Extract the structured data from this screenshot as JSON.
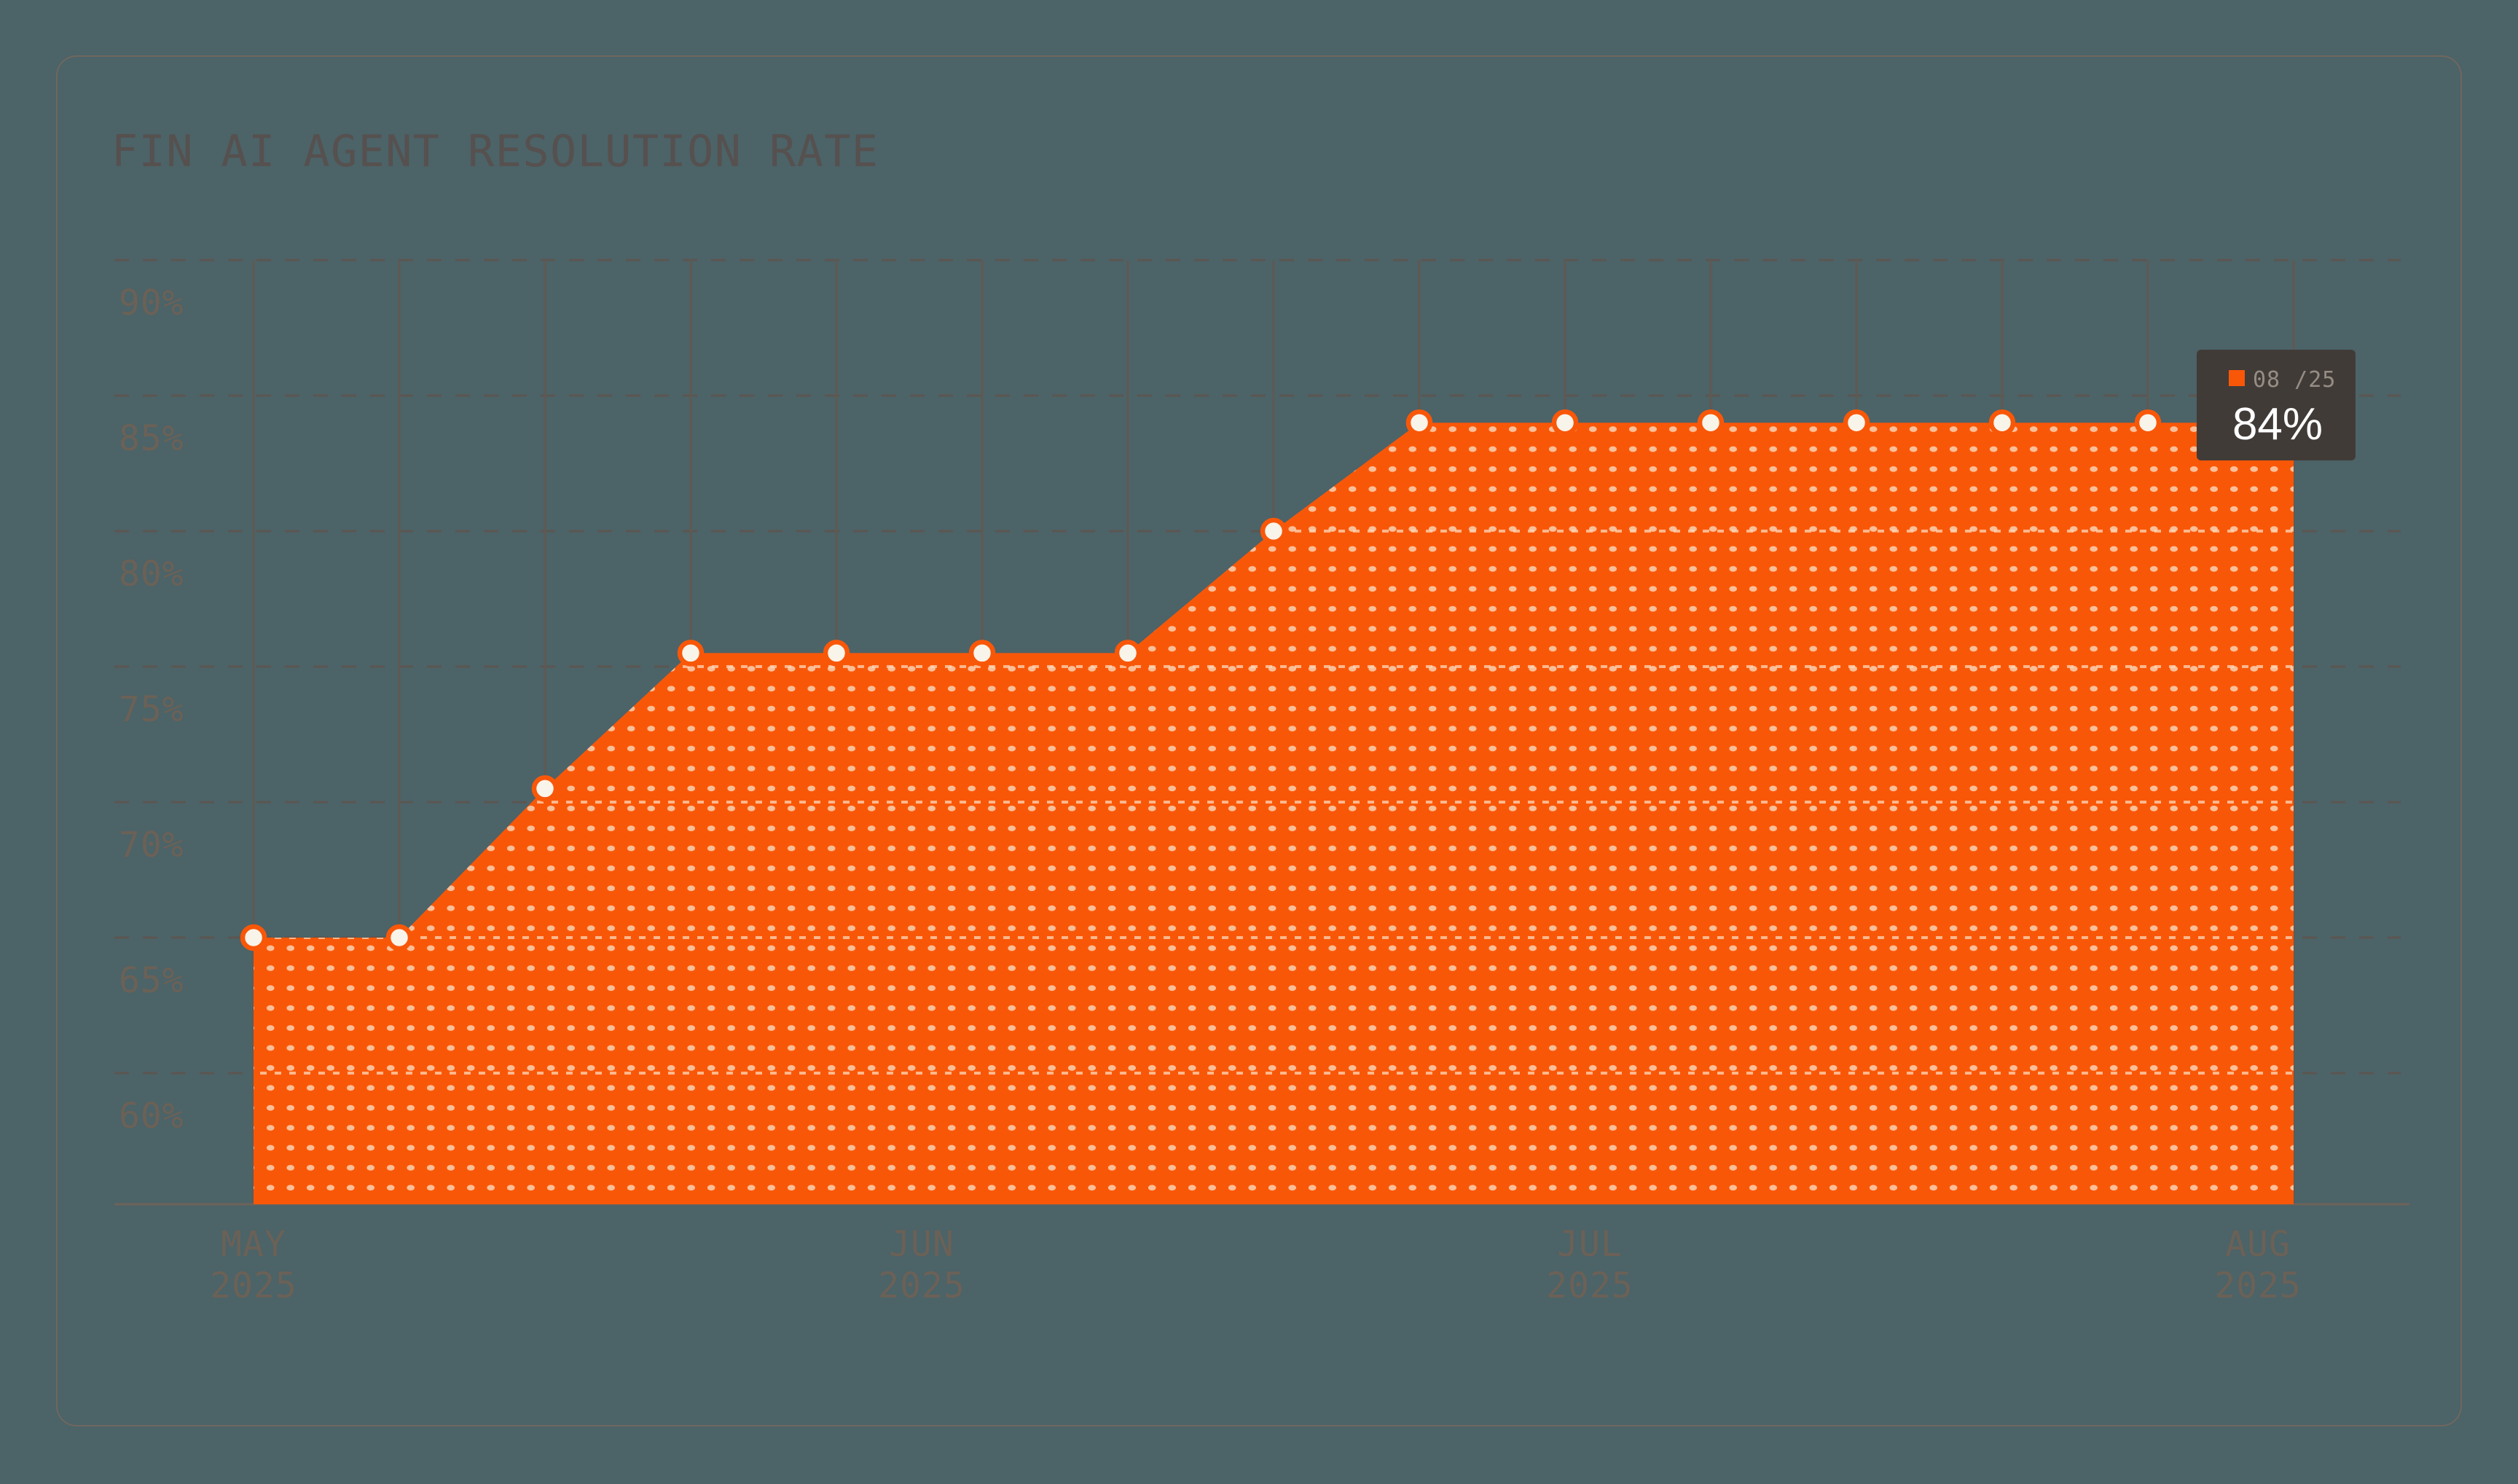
{
  "title": {
    "text": "FIN AI AGENT RESOLUTION RATE"
  },
  "chart_data": {
    "type": "area",
    "title": "FIN AI AGENT RESOLUTION RATE",
    "series": [
      {
        "name": "Resolution rate",
        "unit": "%",
        "values": [
          65,
          65,
          70.5,
          75.5,
          75.5,
          75.5,
          75.5,
          80,
          84,
          84,
          84,
          84,
          84,
          84
        ]
      }
    ],
    "x_axis": {
      "tick_labels": [
        {
          "month": "MAY",
          "year": "2025"
        },
        {
          "month": "JUN",
          "year": "2025"
        },
        {
          "month": "JUL",
          "year": "2025"
        },
        {
          "month": "AUG",
          "year": "2025"
        }
      ]
    },
    "y_axis": {
      "tick_labels": [
        "90%",
        "85%",
        "80%",
        "75%",
        "70%",
        "65%",
        "60%"
      ],
      "tick_values": [
        90,
        85,
        80,
        75,
        70,
        65,
        60
      ]
    },
    "ylim": [
      55,
      92.5
    ],
    "grid": {
      "horizontal": "dashed",
      "vertical": "solid-per-point"
    },
    "legend_position": "none",
    "area_extends_to_right_edge": true
  },
  "tooltip": {
    "date_label": "08 /25",
    "value_label": "84%"
  },
  "colors": {
    "background": "#4C6368",
    "card_border": "#6F675E",
    "title_text": "#56504F",
    "axis_text": "#6B6156",
    "grid_dashed": "#5C5650",
    "grid_vertical": "#5F5952",
    "axis_baseline": "#6D6358",
    "area_fill": "#F95708",
    "area_dot": "#F9C5A1",
    "grid_overlay_on_area": "#FFD7B8",
    "point_fill": "#F8F4EA",
    "point_ring": "#F95708",
    "tooltip_bg": "#413B38",
    "tooltip_label": "#958D84",
    "tooltip_value": "#FFFFFF"
  }
}
